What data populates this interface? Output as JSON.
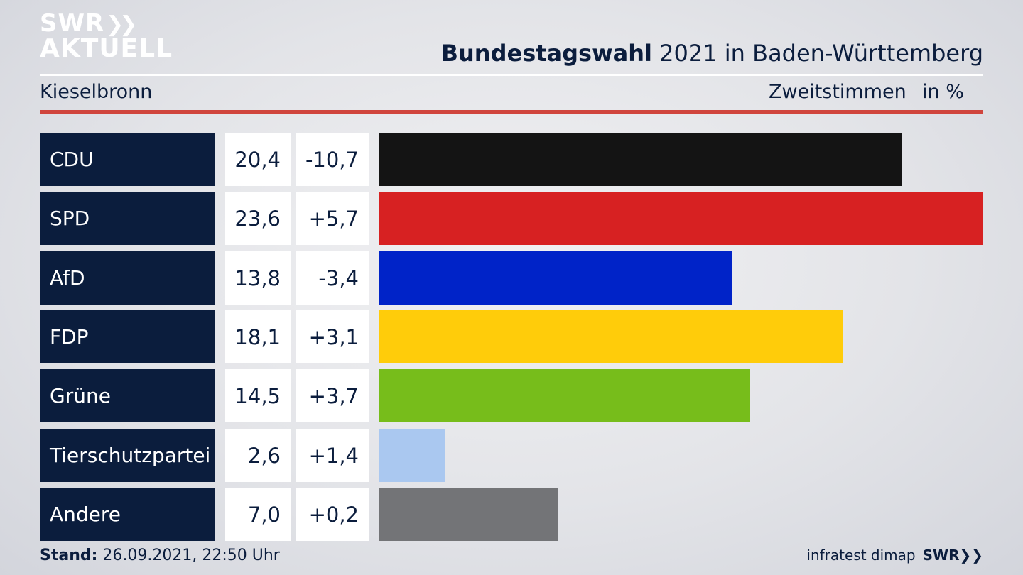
{
  "header": {
    "logo_line1": "SWR",
    "logo_line2": "AKTUELL",
    "title_bold": "Bundestagswahl",
    "title_rest": " 2021 in Baden-Württemberg",
    "region": "Kieselbronn",
    "metric": "Zweitstimmen",
    "unit": "in %"
  },
  "footer": {
    "stand_label": "Stand:",
    "stand_value": " 26.09.2021, 22:50 Uhr",
    "source": "infratest dimap",
    "brand": "SWR"
  },
  "chart_data": {
    "type": "bar",
    "orientation": "horizontal",
    "categories": [
      "CDU",
      "SPD",
      "AfD",
      "FDP",
      "Grüne",
      "Tierschutzpartei",
      "Andere"
    ],
    "values": [
      20.4,
      23.6,
      13.8,
      18.1,
      14.5,
      2.6,
      7.0
    ],
    "value_labels": [
      "20,4",
      "23,6",
      "13,8",
      "18,1",
      "14,5",
      "2,6",
      "7,0"
    ],
    "change_labels": [
      "-10,7",
      "+5,7",
      "-3,4",
      "+3,1",
      "+3,7",
      "+1,4",
      "+0,2"
    ],
    "changes": [
      -10.7,
      5.7,
      -3.4,
      3.1,
      3.7,
      1.4,
      0.2
    ],
    "colors": [
      "#141414",
      "#d72122",
      "#0023c8",
      "#ffcc0a",
      "#77bd1b",
      "#aac8f0",
      "#737477"
    ],
    "title": "Bundestagswahl 2021 in Baden-Württemberg",
    "xlabel": "",
    "ylabel": "",
    "grid": false
  }
}
